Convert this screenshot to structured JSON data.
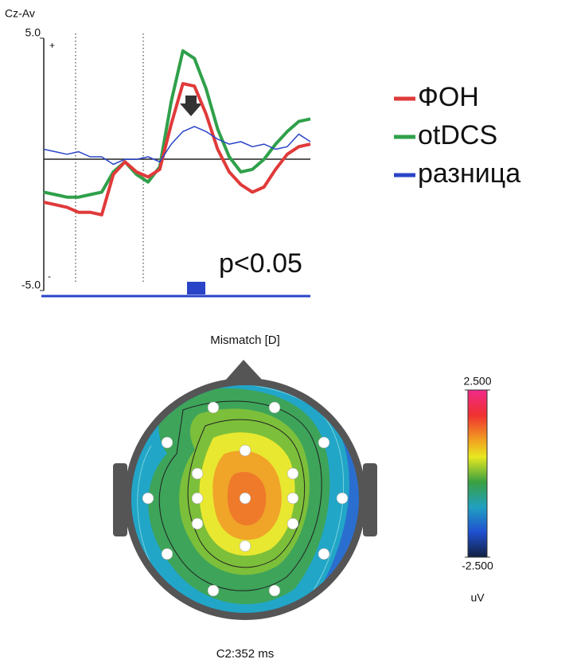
{
  "chart_data": [
    {
      "type": "line",
      "ylabel": "Cz-Av",
      "polarity_labels": [
        "+",
        "-"
      ],
      "ylim": [
        -5,
        5
      ],
      "yticks": [
        {
          "value": 5,
          "label": "5.0"
        },
        {
          "value": -5,
          "label": "-5.0"
        }
      ],
      "annotation": "p<0.05",
      "categories": [
        null,
        null,
        null,
        null,
        null,
        null,
        null,
        null,
        null,
        null,
        null,
        null,
        null,
        null,
        null,
        null,
        null,
        null,
        null,
        null,
        null,
        null,
        null,
        null
      ],
      "series": [
        {
          "name": "ФОН",
          "color": "#e03a3a",
          "values": [
            -1.5,
            -1.6,
            -1.7,
            -1.9,
            -1.9,
            -2.0,
            -0.4,
            0.1,
            -0.3,
            -0.5,
            -0.2,
            1.6,
            3.2,
            3.1,
            2.0,
            0.6,
            -0.3,
            -0.8,
            -1.1,
            -0.9,
            -0.2,
            0.4,
            0.7,
            0.8
          ]
        },
        {
          "name": "otDCS",
          "color": "#2fa04a",
          "values": [
            -1.1,
            -1.2,
            -1.3,
            -1.3,
            -1.2,
            -1.1,
            -0.3,
            0.1,
            -0.4,
            -0.7,
            -0.1,
            2.5,
            4.5,
            4.2,
            3.0,
            1.4,
            0.3,
            -0.3,
            -0.2,
            0.2,
            0.8,
            1.3,
            1.7,
            1.8
          ]
        },
        {
          "name": "разница",
          "color": "#2a44c8",
          "values": [
            0.6,
            0.5,
            0.4,
            0.5,
            0.3,
            0.3,
            0.0,
            0.2,
            0.2,
            0.3,
            0.1,
            0.8,
            1.3,
            1.5,
            1.3,
            1.0,
            0.8,
            0.9,
            0.7,
            0.8,
            0.6,
            0.7,
            1.2,
            0.9
          ]
        }
      ]
    },
    {
      "type": "topomap",
      "title": "Mismatch [D]",
      "clim": [
        -2.5,
        2.5
      ],
      "cticks": [
        {
          "value": 2.5,
          "label": "2.500"
        },
        {
          "value": -2.5,
          "label": "-2.500"
        }
      ],
      "unit": "uV",
      "caption": "C2:352 ms"
    }
  ]
}
